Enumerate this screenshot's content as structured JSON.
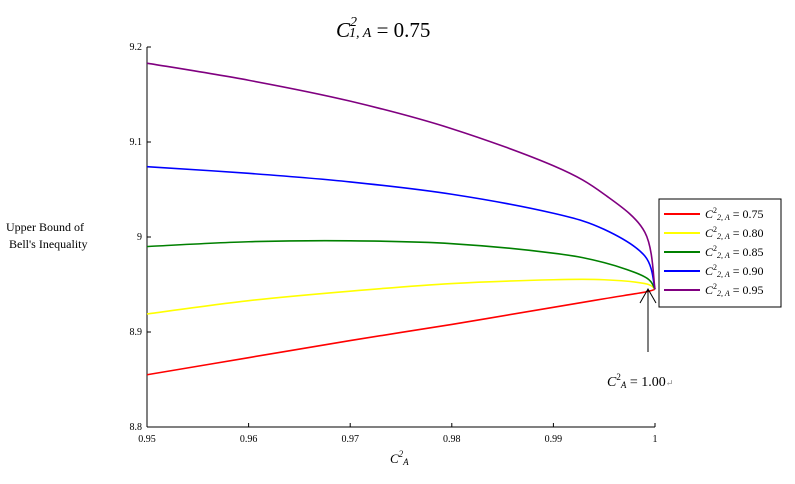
{
  "chart_data": {
    "type": "line",
    "title": {
      "base": "C",
      "sup": "2",
      "sub": "1, A",
      "rest": " = 0.75"
    },
    "xlabel": {
      "base": "C",
      "sup": "2",
      "sub": "A"
    },
    "ylabel_lines": [
      "Upper Bound of",
      "Bell's Inequality"
    ],
    "xlim": [
      0.95,
      1.0
    ],
    "ylim": [
      8.8,
      9.2
    ],
    "x_ticks": [
      "0.95",
      "0.96",
      "0.97",
      "0.98",
      "0.99",
      "1"
    ],
    "y_ticks": [
      "8.8",
      "8.9",
      "9",
      "9.1",
      "9.2"
    ],
    "x_tick_values": [
      0.95,
      0.96,
      0.97,
      0.98,
      0.99,
      1.0
    ],
    "y_tick_values": [
      8.8,
      8.9,
      9.0,
      9.1,
      9.2
    ],
    "x": [
      0.95,
      0.96,
      0.97,
      0.98,
      0.99,
      0.995,
      0.999,
      1.0
    ],
    "series": [
      {
        "name": "C22,A = 0.75",
        "label_base": "C",
        "label_sup": "2",
        "label_sub": "2, A",
        "label_val": " = 0.75",
        "color": "#ff0000",
        "values": [
          8.855,
          8.873,
          8.891,
          8.908,
          8.926,
          8.935,
          8.942,
          8.945
        ]
      },
      {
        "name": "C22,A = 0.80",
        "label_base": "C",
        "label_sup": "2",
        "label_sub": "2, A",
        "label_val": " = 0.80",
        "color": "#ffff00",
        "values": [
          8.919,
          8.933,
          8.943,
          8.951,
          8.955,
          8.955,
          8.951,
          8.945
        ]
      },
      {
        "name": "C22,A = 0.85",
        "label_base": "C",
        "label_sup": "2",
        "label_sub": "2, A",
        "label_val": " = 0.85",
        "color": "#008000",
        "values": [
          8.99,
          8.995,
          8.996,
          8.993,
          8.983,
          8.973,
          8.958,
          8.945
        ]
      },
      {
        "name": "C22,A = 0.90",
        "label_base": "C",
        "label_sup": "2",
        "label_sub": "2, A",
        "label_val": " = 0.90",
        "color": "#0000ff",
        "values": [
          9.074,
          9.067,
          9.058,
          9.045,
          9.025,
          9.008,
          8.98,
          8.945
        ]
      },
      {
        "name": "C22,A = 0.95",
        "label_base": "C",
        "label_sup": "2",
        "label_sub": "2, A",
        "label_val": " = 0.95",
        "color": "#800080",
        "values": [
          9.183,
          9.165,
          9.143,
          9.114,
          9.075,
          9.045,
          9.005,
          8.945
        ]
      }
    ],
    "annotation": {
      "base": "C",
      "sup": "2",
      "sub": "A",
      "rest": " = 1.00",
      "mark": "↵",
      "at_x": 1.0,
      "at_y": 8.945
    },
    "grid": false,
    "legend": "right"
  }
}
